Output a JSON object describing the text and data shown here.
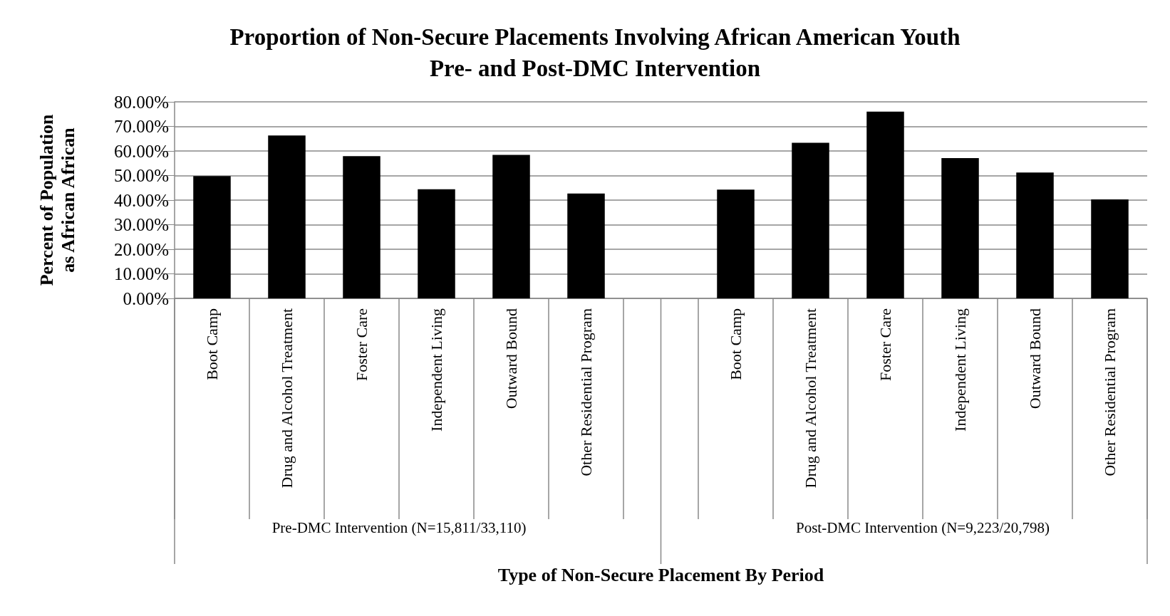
{
  "chart_data": {
    "type": "bar",
    "title": "Proportion of Non-Secure Placements Involving African American Youth\nPre- and Post-DMC Intervention",
    "xlabel": "Type of Non-Secure Placement By Period",
    "ylabel": "Percent of Population as African African",
    "categories": [
      "Boot Camp",
      "Drug and Alcohol Treatment",
      "Foster Care",
      "Independent Living",
      "Outward Bound",
      "Other Residential Program",
      null,
      "Boot Camp",
      "Drug and Alcohol Treatment",
      "Foster Care",
      "Independent Living",
      "Outward Bound",
      "Other Residential Program"
    ],
    "values": [
      49.8,
      66.3,
      57.9,
      44.4,
      58.4,
      42.7,
      null,
      44.3,
      63.3,
      76.0,
      57.1,
      51.2,
      40.3
    ],
    "color": "#000000",
    "ylim": [
      0,
      80
    ],
    "yticks": [
      {
        "value": 0,
        "label": "0.00%"
      },
      {
        "value": 10,
        "label": "10.00%"
      },
      {
        "value": 20,
        "label": "20.00%"
      },
      {
        "value": 30,
        "label": "30.00%"
      },
      {
        "value": 40,
        "label": "40.00%"
      },
      {
        "value": 50,
        "label": "50.00%"
      },
      {
        "value": 60,
        "label": "60.00%"
      },
      {
        "value": 70,
        "label": "70.00%"
      },
      {
        "value": 80,
        "label": "80.00%"
      }
    ],
    "grid": "y",
    "annotations": [
      "Pre-DMC Intervention (N=15,811/33,110)",
      "Post-DMC Intervention (N=9,223/20,798)"
    ]
  }
}
